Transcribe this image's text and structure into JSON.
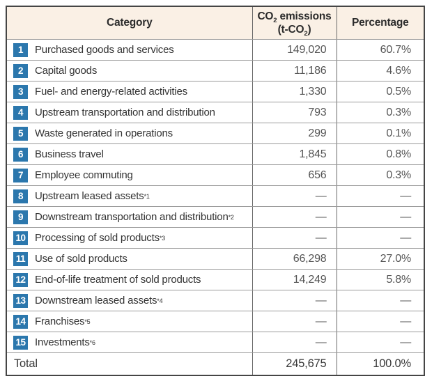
{
  "table": {
    "header": {
      "category": "Category",
      "emissions_line1": {
        "pre": "CO",
        "sub": "2",
        "post": " emissions"
      },
      "emissions_line2": {
        "pre": "(t-CO",
        "sub": "2",
        "post": ")"
      },
      "percentage": "Percentage"
    },
    "rows": [
      {
        "num": "1",
        "label": "Purchased goods and services",
        "sup": "",
        "emissions": "149,020",
        "percentage": "60.7%"
      },
      {
        "num": "2",
        "label": "Capital goods",
        "sup": "",
        "emissions": "11,186",
        "percentage": "4.6%"
      },
      {
        "num": "3",
        "label": "Fuel- and energy-related activities",
        "sup": "",
        "emissions": "1,330",
        "percentage": "0.5%"
      },
      {
        "num": "4",
        "label": "Upstream transportation and distribution",
        "sup": "",
        "emissions": "793",
        "percentage": "0.3%"
      },
      {
        "num": "5",
        "label": "Waste generated in operations",
        "sup": "",
        "emissions": "299",
        "percentage": "0.1%"
      },
      {
        "num": "6",
        "label": "Business travel",
        "sup": "",
        "emissions": "1,845",
        "percentage": "0.8%"
      },
      {
        "num": "7",
        "label": "Employee commuting",
        "sup": "",
        "emissions": "656",
        "percentage": "0.3%"
      },
      {
        "num": "8",
        "label": "Upstream leased assets",
        "sup": "*1",
        "emissions": "—",
        "percentage": "—"
      },
      {
        "num": "9",
        "label": "Downstream transportation and distribution",
        "sup": "*2",
        "emissions": "—",
        "percentage": "—"
      },
      {
        "num": "10",
        "label": "Processing of sold products",
        "sup": "*3",
        "emissions": "—",
        "percentage": "—"
      },
      {
        "num": "11",
        "label": "Use of sold products",
        "sup": "",
        "emissions": "66,298",
        "percentage": "27.0%"
      },
      {
        "num": "12",
        "label": "End-of-life treatment of sold products",
        "sup": "",
        "emissions": "14,249",
        "percentage": "5.8%"
      },
      {
        "num": "13",
        "label": "Downstream leased assets",
        "sup": "*4",
        "emissions": "—",
        "percentage": "—"
      },
      {
        "num": "14",
        "label": "Franchises",
        "sup": "*5",
        "emissions": "—",
        "percentage": "—"
      },
      {
        "num": "15",
        "label": "Investments",
        "sup": "*6",
        "emissions": "—",
        "percentage": "—"
      }
    ],
    "total": {
      "label": "Total",
      "emissions": "245,675",
      "percentage": "100.0%"
    }
  },
  "colors": {
    "header_bg": "#faf0e5",
    "badge_blue": "#2b77ad",
    "outer_border": "#454545",
    "inner_border_h": "#9a9a9a",
    "inner_border_v": "#676767"
  }
}
